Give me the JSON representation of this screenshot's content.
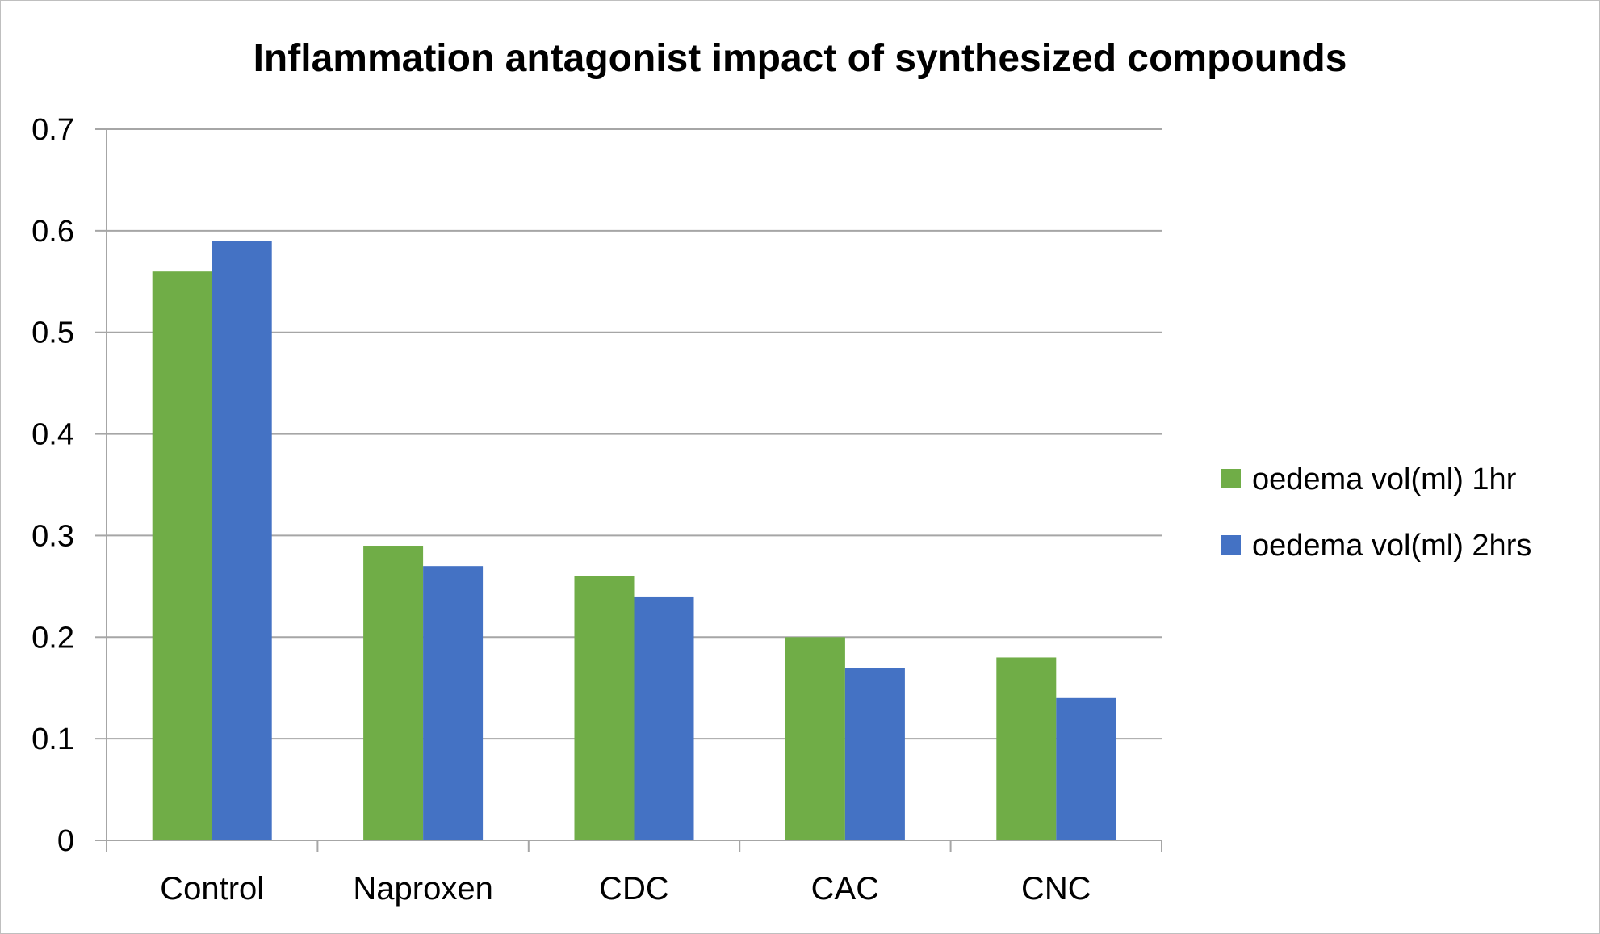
{
  "chart_data": {
    "type": "bar",
    "title": "Inflammation antagonist impact of synthesized compounds",
    "xlabel": "",
    "ylabel": "",
    "categories": [
      "Control",
      "Naproxen",
      "CDC",
      "CAC",
      "CNC"
    ],
    "series": [
      {
        "name": "oedema vol(ml) 1hr",
        "color": "#70AD47",
        "values": [
          0.56,
          0.29,
          0.26,
          0.2,
          0.18
        ]
      },
      {
        "name": "oedema vol(ml) 2hrs",
        "color": "#4472C4",
        "values": [
          0.59,
          0.27,
          0.24,
          0.17,
          0.14
        ]
      }
    ],
    "ylim": [
      0,
      0.7
    ],
    "yticks": [
      "0",
      "0.1",
      "0.2",
      "0.3",
      "0.4",
      "0.5",
      "0.6",
      "0.7"
    ],
    "grid": true,
    "legend_position": "right"
  }
}
